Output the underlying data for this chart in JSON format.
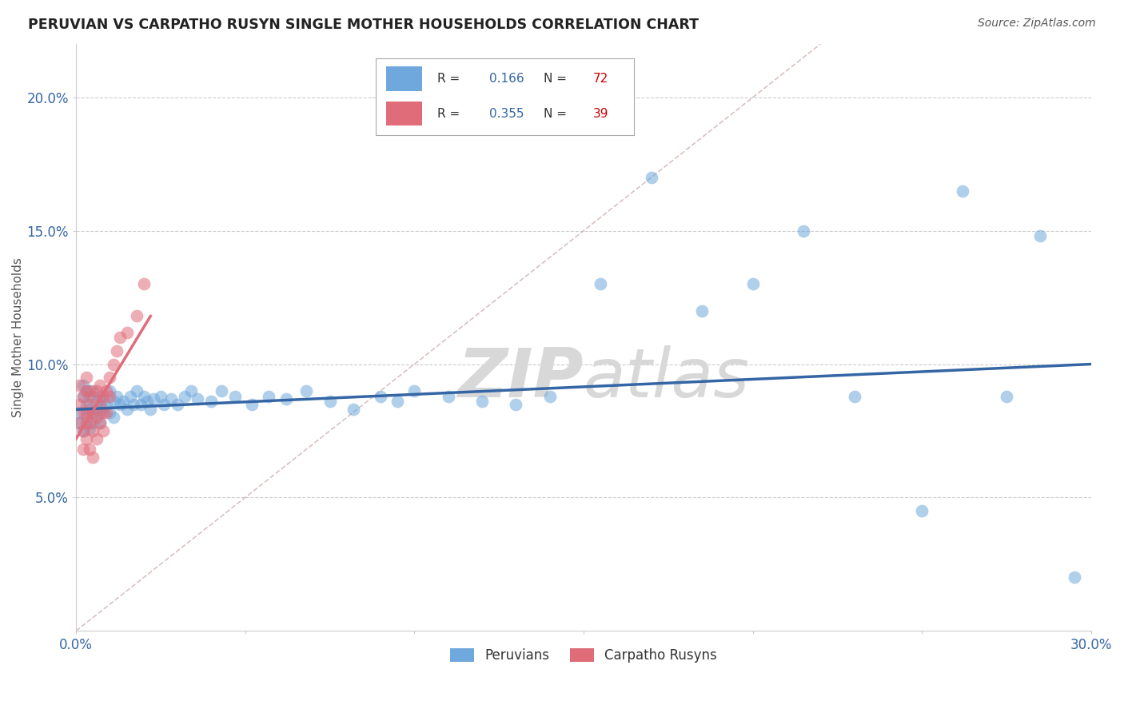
{
  "title": "PERUVIAN VS CARPATHO RUSYN SINGLE MOTHER HOUSEHOLDS CORRELATION CHART",
  "source": "Source: ZipAtlas.com",
  "ylabel": "Single Mother Households",
  "xlim": [
    0.0,
    0.3
  ],
  "ylim": [
    0.0,
    0.22
  ],
  "xticks": [
    0.0,
    0.05,
    0.1,
    0.15,
    0.2,
    0.25,
    0.3
  ],
  "yticks": [
    0.05,
    0.1,
    0.15,
    0.2
  ],
  "ytick_labels": [
    "5.0%",
    "10.0%",
    "15.0%",
    "20.0%"
  ],
  "xtick_labels": [
    "0.0%",
    "",
    "",
    "",
    "",
    "",
    "30.0%"
  ],
  "blue_color": "#6fa8dc",
  "pink_color": "#e06c7a",
  "blue_line_color": "#3465a4",
  "pink_line_color": "#e06c7a",
  "diagonal_color": "#c0a0a0",
  "peruvians_x": [
    0.001,
    0.001,
    0.002,
    0.002,
    0.002,
    0.003,
    0.003,
    0.003,
    0.004,
    0.004,
    0.004,
    0.005,
    0.005,
    0.005,
    0.006,
    0.006,
    0.007,
    0.007,
    0.007,
    0.008,
    0.008,
    0.009,
    0.01,
    0.01,
    0.011,
    0.011,
    0.012,
    0.013,
    0.014,
    0.015,
    0.016,
    0.017,
    0.018,
    0.019,
    0.02,
    0.021,
    0.022,
    0.023,
    0.025,
    0.026,
    0.028,
    0.03,
    0.032,
    0.034,
    0.036,
    0.04,
    0.043,
    0.047,
    0.052,
    0.057,
    0.062,
    0.068,
    0.075,
    0.082,
    0.09,
    0.095,
    0.1,
    0.11,
    0.12,
    0.13,
    0.14,
    0.155,
    0.17,
    0.185,
    0.2,
    0.215,
    0.23,
    0.25,
    0.262,
    0.275,
    0.285,
    0.295
  ],
  "peruvians_y": [
    0.082,
    0.078,
    0.088,
    0.075,
    0.092,
    0.085,
    0.09,
    0.08,
    0.083,
    0.088,
    0.076,
    0.09,
    0.082,
    0.078,
    0.086,
    0.083,
    0.088,
    0.082,
    0.078,
    0.087,
    0.083,
    0.085,
    0.09,
    0.082,
    0.086,
    0.08,
    0.088,
    0.085,
    0.086,
    0.083,
    0.088,
    0.085,
    0.09,
    0.085,
    0.088,
    0.086,
    0.083,
    0.087,
    0.088,
    0.085,
    0.087,
    0.085,
    0.088,
    0.09,
    0.087,
    0.086,
    0.09,
    0.088,
    0.085,
    0.088,
    0.087,
    0.09,
    0.086,
    0.083,
    0.088,
    0.086,
    0.09,
    0.088,
    0.086,
    0.085,
    0.088,
    0.13,
    0.17,
    0.12,
    0.13,
    0.15,
    0.088,
    0.045,
    0.165,
    0.088,
    0.148,
    0.02
  ],
  "rusyn_x": [
    0.001,
    0.001,
    0.001,
    0.002,
    0.002,
    0.002,
    0.002,
    0.003,
    0.003,
    0.003,
    0.003,
    0.003,
    0.004,
    0.004,
    0.004,
    0.004,
    0.005,
    0.005,
    0.005,
    0.005,
    0.006,
    0.006,
    0.006,
    0.007,
    0.007,
    0.007,
    0.008,
    0.008,
    0.008,
    0.009,
    0.009,
    0.01,
    0.01,
    0.011,
    0.012,
    0.013,
    0.015,
    0.018,
    0.02
  ],
  "rusyn_y": [
    0.085,
    0.078,
    0.092,
    0.075,
    0.082,
    0.088,
    0.068,
    0.09,
    0.082,
    0.078,
    0.095,
    0.072,
    0.085,
    0.078,
    0.068,
    0.09,
    0.082,
    0.075,
    0.088,
    0.065,
    0.08,
    0.072,
    0.09,
    0.085,
    0.078,
    0.092,
    0.088,
    0.082,
    0.075,
    0.09,
    0.082,
    0.088,
    0.095,
    0.1,
    0.105,
    0.11,
    0.112,
    0.118,
    0.13
  ],
  "blue_trend_x": [
    0.0,
    0.3
  ],
  "blue_trend_y": [
    0.083,
    0.1
  ],
  "pink_trend_x": [
    0.0,
    0.022
  ],
  "pink_trend_y": [
    0.072,
    0.118
  ]
}
